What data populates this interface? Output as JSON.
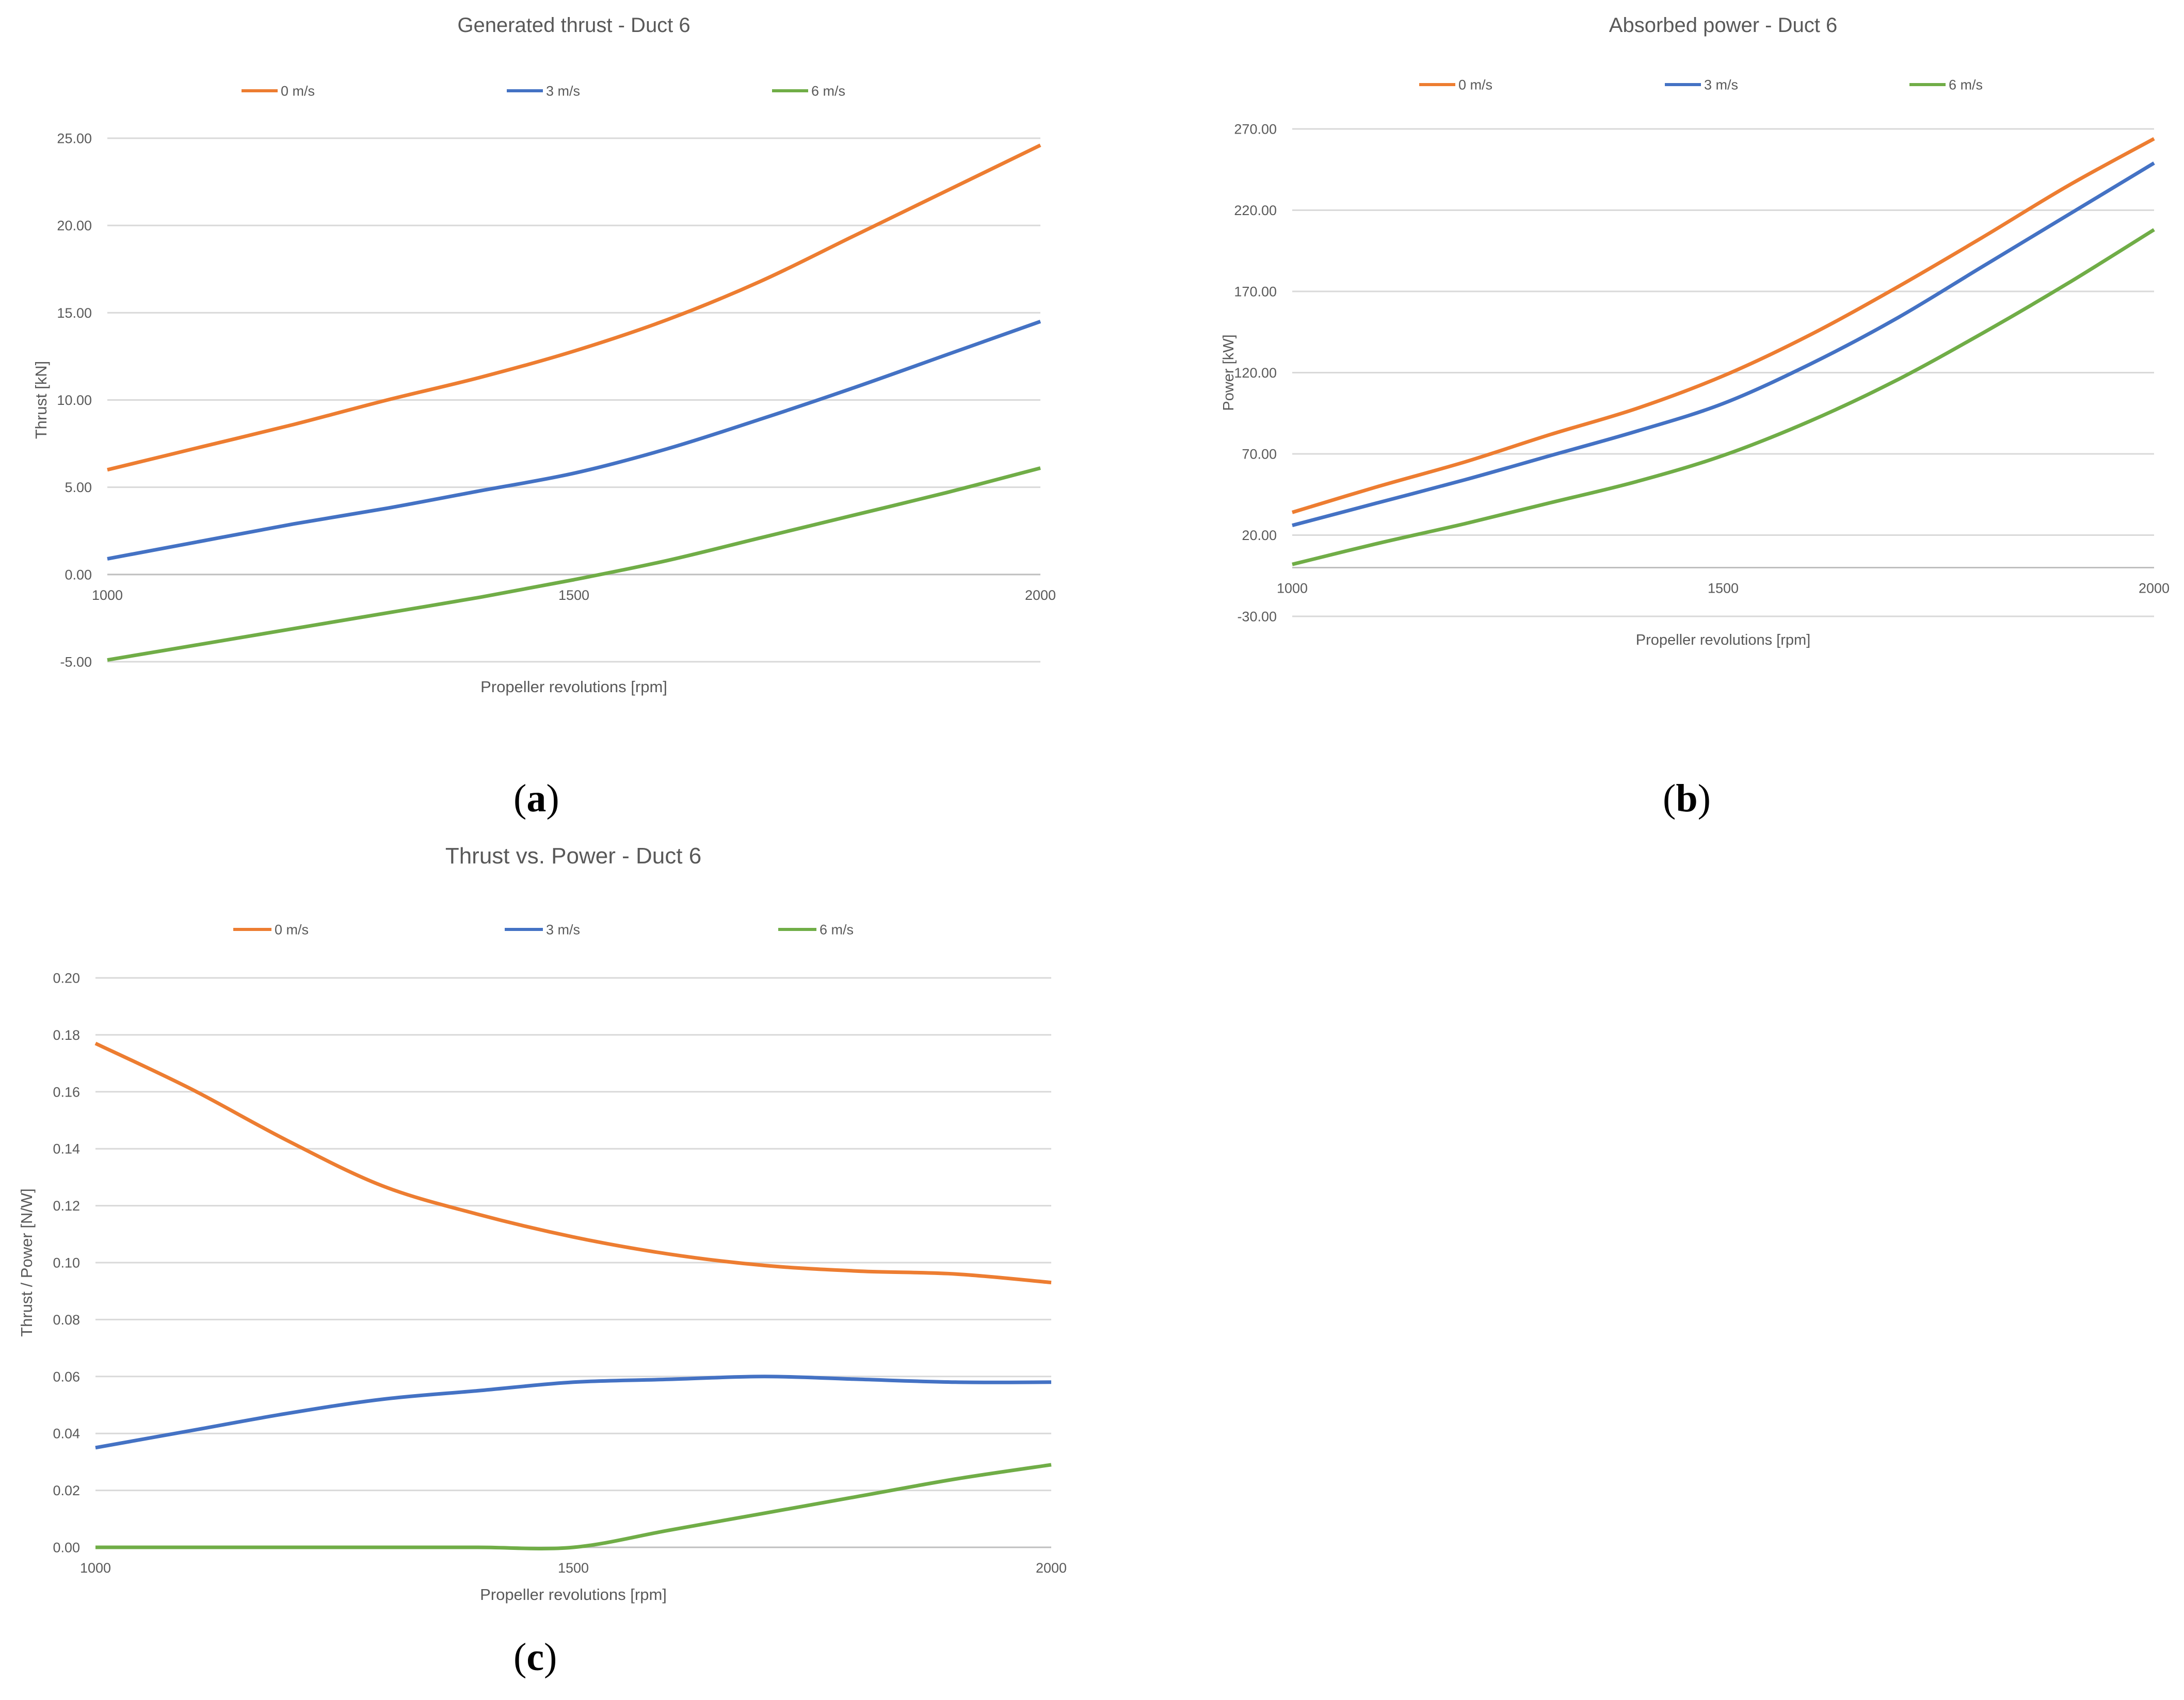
{
  "panel_labels": {
    "a": "a",
    "b": "b",
    "c": "c"
  },
  "chart_data": [
    {
      "type": "line",
      "title": "Generated thrust - Duct 6",
      "xlabel": "Propeller revolutions [rpm]",
      "ylabel": "Thrust [kN]",
      "xlim": [
        1000,
        2000
      ],
      "ylim": [
        -5,
        25
      ],
      "yticks": [
        -5,
        0,
        5,
        10,
        15,
        20,
        25
      ],
      "ytick_labels": [
        "-5.00",
        "0.00",
        "5.00",
        "10.00",
        "15.00",
        "20.00",
        "25.00"
      ],
      "xticks": [
        1000,
        1500,
        2000
      ],
      "xtick_labels": [
        "1000",
        "1500",
        "2000"
      ],
      "legend_position": "top",
      "x": [
        1000,
        1100,
        1200,
        1300,
        1400,
        1500,
        1600,
        1700,
        1800,
        1900,
        2000
      ],
      "series": [
        {
          "name": "0 m/s",
          "color": "#ED7D31",
          "values": [
            6.0,
            7.3,
            8.6,
            10.0,
            11.3,
            12.8,
            14.6,
            16.8,
            19.4,
            22.0,
            24.6
          ]
        },
        {
          "name": "3 m/s",
          "color": "#4472C4",
          "values": [
            0.9,
            1.9,
            2.9,
            3.8,
            4.8,
            5.8,
            7.2,
            8.9,
            10.7,
            12.6,
            14.5
          ]
        },
        {
          "name": "6 m/s",
          "color": "#70AD47",
          "values": [
            -4.9,
            -4.0,
            -3.1,
            -2.2,
            -1.3,
            -0.3,
            0.8,
            2.1,
            3.4,
            4.7,
            6.1
          ]
        }
      ]
    },
    {
      "type": "line",
      "title": "Absorbed power - Duct 6",
      "xlabel": "Propeller revolutions [rpm]",
      "ylabel": "Power [kW]",
      "xlim": [
        1000,
        2000
      ],
      "ylim": [
        -30,
        270
      ],
      "axis_crossing": 0,
      "yticks": [
        -30,
        20,
        70,
        120,
        170,
        220,
        270
      ],
      "ytick_labels": [
        "-30.00",
        "20.00",
        "70.00",
        "120.00",
        "170.00",
        "220.00",
        "270.00"
      ],
      "xticks": [
        1000,
        1500,
        2000
      ],
      "xtick_labels": [
        "1000",
        "1500",
        "2000"
      ],
      "legend_position": "top",
      "x": [
        1000,
        1100,
        1200,
        1300,
        1400,
        1500,
        1600,
        1700,
        1800,
        1900,
        2000
      ],
      "series": [
        {
          "name": "0 m/s",
          "color": "#ED7D31",
          "values": [
            34,
            50,
            65,
            82,
            98,
            118,
            143,
            172,
            203,
            235,
            264
          ]
        },
        {
          "name": "3 m/s",
          "color": "#4472C4",
          "values": [
            26,
            40,
            54,
            69,
            84,
            101,
            125,
            153,
            185,
            217,
            249
          ]
        },
        {
          "name": "6 m/s",
          "color": "#70AD47",
          "values": [
            2,
            15,
            27,
            40,
            53,
            69,
            90,
            115,
            144,
            175,
            208
          ]
        }
      ]
    },
    {
      "type": "line",
      "title": "Thrust vs. Power - Duct 6",
      "xlabel": "Propeller revolutions [rpm]",
      "ylabel": "Thrust / Power [N/W]",
      "xlim": [
        1000,
        2000
      ],
      "ylim": [
        0,
        0.2
      ],
      "yticks": [
        0,
        0.02,
        0.04,
        0.06,
        0.08,
        0.1,
        0.12,
        0.14,
        0.16,
        0.18,
        0.2
      ],
      "ytick_labels": [
        "0.00",
        "0.02",
        "0.04",
        "0.06",
        "0.08",
        "0.10",
        "0.12",
        "0.14",
        "0.16",
        "0.18",
        "0.20"
      ],
      "xticks": [
        1000,
        1500,
        2000
      ],
      "xtick_labels": [
        "1000",
        "1500",
        "2000"
      ],
      "legend_position": "top",
      "x": [
        1000,
        1100,
        1200,
        1300,
        1400,
        1500,
        1600,
        1700,
        1800,
        1900,
        2000
      ],
      "series": [
        {
          "name": "0 m/s",
          "color": "#ED7D31",
          "values": [
            0.177,
            0.161,
            0.143,
            0.127,
            0.117,
            0.109,
            0.103,
            0.099,
            0.097,
            0.096,
            0.093
          ]
        },
        {
          "name": "3 m/s",
          "color": "#4472C4",
          "values": [
            0.035,
            0.041,
            0.047,
            0.052,
            0.055,
            0.058,
            0.059,
            0.06,
            0.059,
            0.058,
            0.058
          ]
        },
        {
          "name": "6 m/s",
          "color": "#70AD47",
          "values": [
            0.0,
            0.0,
            0.0,
            0.0,
            0.0,
            0.0,
            0.006,
            0.012,
            0.018,
            0.024,
            0.029
          ]
        }
      ]
    }
  ]
}
